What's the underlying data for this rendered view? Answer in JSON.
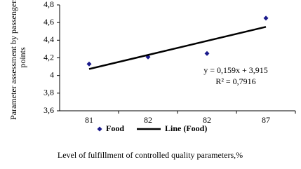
{
  "chart_data": {
    "type": "scatter",
    "categories": [
      "81",
      "82",
      "82",
      "87"
    ],
    "series": [
      {
        "name": "Food",
        "color": "#1a1a8c",
        "values": [
          4.13,
          4.21,
          4.25,
          4.65
        ]
      },
      {
        "name": "Line (Food)",
        "color": "#000000",
        "values": [
          4.074,
          4.233,
          4.392,
          4.551
        ],
        "kind": "line"
      }
    ],
    "ylim": [
      3.6,
      4.8
    ],
    "yticks": [
      {
        "value": 3.6,
        "label": "3,6"
      },
      {
        "value": 3.8,
        "label": "3,8"
      },
      {
        "value": 4,
        "label": "4"
      },
      {
        "value": 4.2,
        "label": "4,2"
      },
      {
        "value": 4.4,
        "label": "4,4"
      },
      {
        "value": 4.6,
        "label": "4,6"
      },
      {
        "value": 4.8,
        "label": "4,8"
      }
    ],
    "ylabel": [
      "Parameter assessment by passengers,",
      "points"
    ],
    "xlabel": "Level of fulfillment  of controlled quality parameters,%",
    "annotations": [
      "y = 0,159x  + 3,915",
      "R² = 0,7916"
    ],
    "grid": false
  }
}
